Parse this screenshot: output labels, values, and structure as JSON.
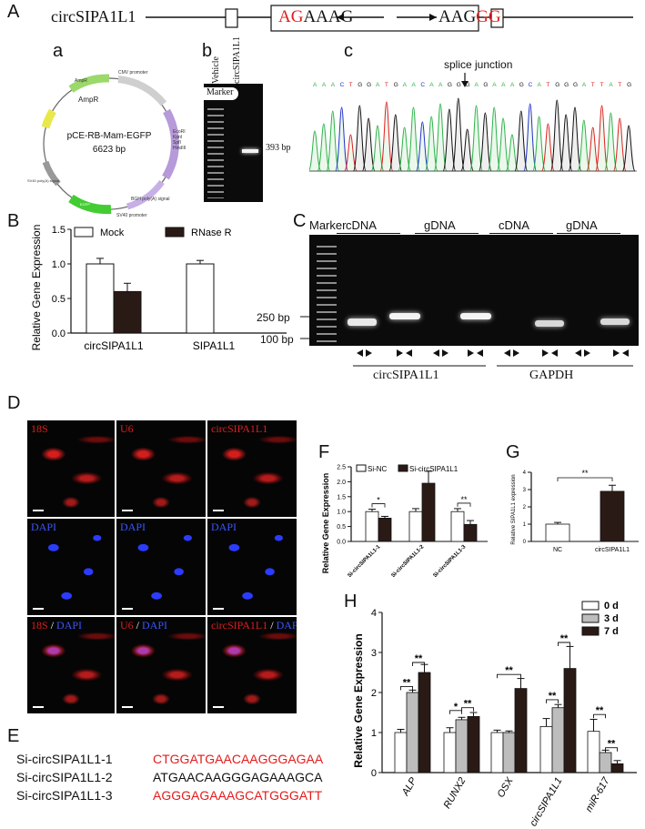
{
  "panel_labels": {
    "A": "A",
    "a": "a",
    "b": "b",
    "c": "c",
    "B": "B",
    "C": "C",
    "D": "D",
    "E": "E",
    "F": "F",
    "G": "G",
    "H": "H"
  },
  "panelA": {
    "gene": "circSIPA1L1",
    "seq_left_red": "AG",
    "seq_left_black": "AAAG",
    "seq_right_black": "AAG",
    "seq_right_red": "GG"
  },
  "plasmid": {
    "name": "pCE-RB-Mam-EGFP",
    "size": "6623 bp",
    "labels": [
      "AmpR",
      "CMV promoter",
      "EcoRI",
      "KpnI",
      "SpfI",
      "HindIII",
      "SV40 promoter",
      "BGH poly(A) signal",
      "EGFP",
      "SV40 poly(A) signal"
    ]
  },
  "gel_b": {
    "lanes": [
      "Vehicle",
      "circSIPA1L1"
    ],
    "marker": "Marker",
    "band_label": "393 bp"
  },
  "seq_c": {
    "splice_label": "splice junction",
    "bases": "AAACTGGATGAACAAGGGAGAAAGCATGGGATTATG"
  },
  "chart_B": {
    "chart_data": {
      "type": "bar",
      "categories": [
        "circSIPA1L1",
        "SIPA1L1"
      ],
      "series": [
        {
          "name": "Mock",
          "values": [
            1.0,
            1.0
          ],
          "errors": [
            0.08,
            0.05
          ]
        },
        {
          "name": "RNase R",
          "values": [
            0.6,
            0.0
          ],
          "errors": [
            0.12,
            0.0
          ]
        }
      ],
      "ylabel": "Relative Gene Expression",
      "yticks": [
        "0.0",
        "0.5",
        "1.0",
        "1.5"
      ],
      "ylim": [
        0,
        1.5
      ]
    }
  },
  "gel_C": {
    "marker": "Marker",
    "groups": [
      "cDNA",
      "gDNA",
      "cDNA",
      "gDNA"
    ],
    "markers_bp": [
      "250 bp",
      "100 bp"
    ],
    "genes": [
      "circSIPA1L1",
      "GAPDH"
    ]
  },
  "micro_D": {
    "top": [
      "18S",
      "U6",
      "circSIPA1L1"
    ],
    "mid": [
      "DAPI",
      "DAPI",
      "DAPI"
    ],
    "bot_a": [
      "18S",
      "U6",
      "circSIPA1L1"
    ],
    "sep": " / ",
    "bot_b": "DAPI"
  },
  "seqs_E": [
    {
      "name": "Si-circSIPA1L1-1",
      "seq": "CTGGATGAACAAGGGAGAA",
      "red": true
    },
    {
      "name": "Si-circSIPA1L1-2",
      "seq": "ATGAACAAGGGAGAAAGCA",
      "red": false
    },
    {
      "name": "Si-circSIPA1L1-3",
      "seq": "AGGGAGAAAGCATGGGATT",
      "red": true
    }
  ],
  "chart_F": {
    "chart_data": {
      "type": "bar",
      "categories": [
        "Si-circSIPA1L1-1",
        "Si-circSIPA1L1-2",
        "Si-circSIPA1L1-3"
      ],
      "series": [
        {
          "name": "Si-NC",
          "values": [
            1.0,
            1.0,
            1.0
          ],
          "errors": [
            0.08,
            0.1,
            0.1
          ]
        },
        {
          "name": "Si-circSIPA1L1",
          "values": [
            0.78,
            1.95,
            0.57
          ],
          "errors": [
            0.06,
            0.4,
            0.13
          ]
        }
      ],
      "ylabel": "Relative Gene Expression",
      "yticks": [
        "0.0",
        "0.5",
        "1.0",
        "1.5",
        "2.0",
        "2.5"
      ],
      "ylim": [
        0,
        2.5
      ],
      "sig": [
        "*",
        "",
        "**"
      ]
    }
  },
  "chart_G": {
    "chart_data": {
      "type": "bar",
      "categories": [
        "NC",
        "circSIPA1L1"
      ],
      "values": [
        1.0,
        2.9
      ],
      "errors": [
        0.1,
        0.35
      ],
      "ylabel": "Relative SIPA1L1 expression",
      "yticks": [
        "0",
        "1",
        "2",
        "3",
        "4"
      ],
      "ylim": [
        0,
        4
      ],
      "sig": "**"
    }
  },
  "chart_H": {
    "chart_data": {
      "type": "bar",
      "categories": [
        "ALP",
        "RUNX2",
        "OSX",
        "circSIPA1L1",
        "miR-617"
      ],
      "series": [
        {
          "name": "0 d",
          "values": [
            1.0,
            1.0,
            1.0,
            1.15,
            1.03
          ]
        },
        {
          "name": "3 d",
          "values": [
            2.0,
            1.32,
            1.0,
            1.62,
            0.5
          ]
        },
        {
          "name": "7 d",
          "values": [
            2.5,
            1.4,
            2.1,
            2.6,
            0.22
          ]
        }
      ],
      "errors": [
        [
          0.08,
          0.12,
          0.06,
          0.2,
          0.3
        ],
        [
          0.06,
          0.06,
          0.04,
          0.08,
          0.06
        ],
        [
          0.2,
          0.1,
          0.25,
          0.55,
          0.08
        ]
      ],
      "ylabel": "Relative Gene Expression",
      "yticks": [
        "0",
        "1",
        "2",
        "3",
        "4"
      ],
      "ylim": [
        0,
        4
      ],
      "sig_labels": [
        "**",
        "*",
        "**"
      ]
    }
  }
}
